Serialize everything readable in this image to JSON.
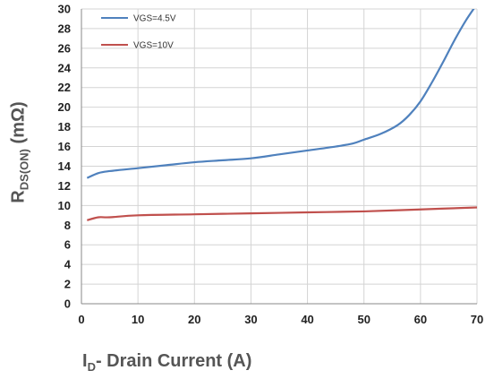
{
  "chart_data": {
    "type": "line",
    "xlabel_main": "I",
    "xlabel_sub": "D",
    "xlabel_rest": "- Drain Current (A)",
    "ylabel_main": "R",
    "ylabel_sub": "DS(ON)",
    "ylabel_rest": " (mΩ)",
    "xlim": [
      0,
      70
    ],
    "ylim": [
      0,
      30
    ],
    "xticks": [
      0,
      10,
      20,
      30,
      40,
      50,
      60,
      70
    ],
    "yticks": [
      0,
      2,
      4,
      6,
      8,
      10,
      12,
      14,
      16,
      18,
      20,
      22,
      24,
      26,
      28,
      30
    ],
    "grid": true,
    "legend_position": "top-left",
    "series": [
      {
        "name": "VGS=4.5V",
        "color": "#4f81bd",
        "x": [
          1,
          3,
          5,
          10,
          15,
          20,
          25,
          30,
          35,
          40,
          45,
          48,
          50,
          53,
          56,
          58,
          60,
          62,
          64,
          66,
          68,
          70
        ],
        "y": [
          12.8,
          13.3,
          13.5,
          13.8,
          14.1,
          14.4,
          14.6,
          14.8,
          15.2,
          15.6,
          16.0,
          16.3,
          16.7,
          17.3,
          18.2,
          19.2,
          20.6,
          22.5,
          24.6,
          26.8,
          28.8,
          30.5
        ]
      },
      {
        "name": "VGS=10V",
        "color": "#c0504d",
        "x": [
          1,
          3,
          5,
          10,
          20,
          30,
          40,
          50,
          60,
          70
        ],
        "y": [
          8.5,
          8.8,
          8.8,
          9.0,
          9.1,
          9.2,
          9.3,
          9.4,
          9.6,
          9.8
        ]
      }
    ]
  }
}
